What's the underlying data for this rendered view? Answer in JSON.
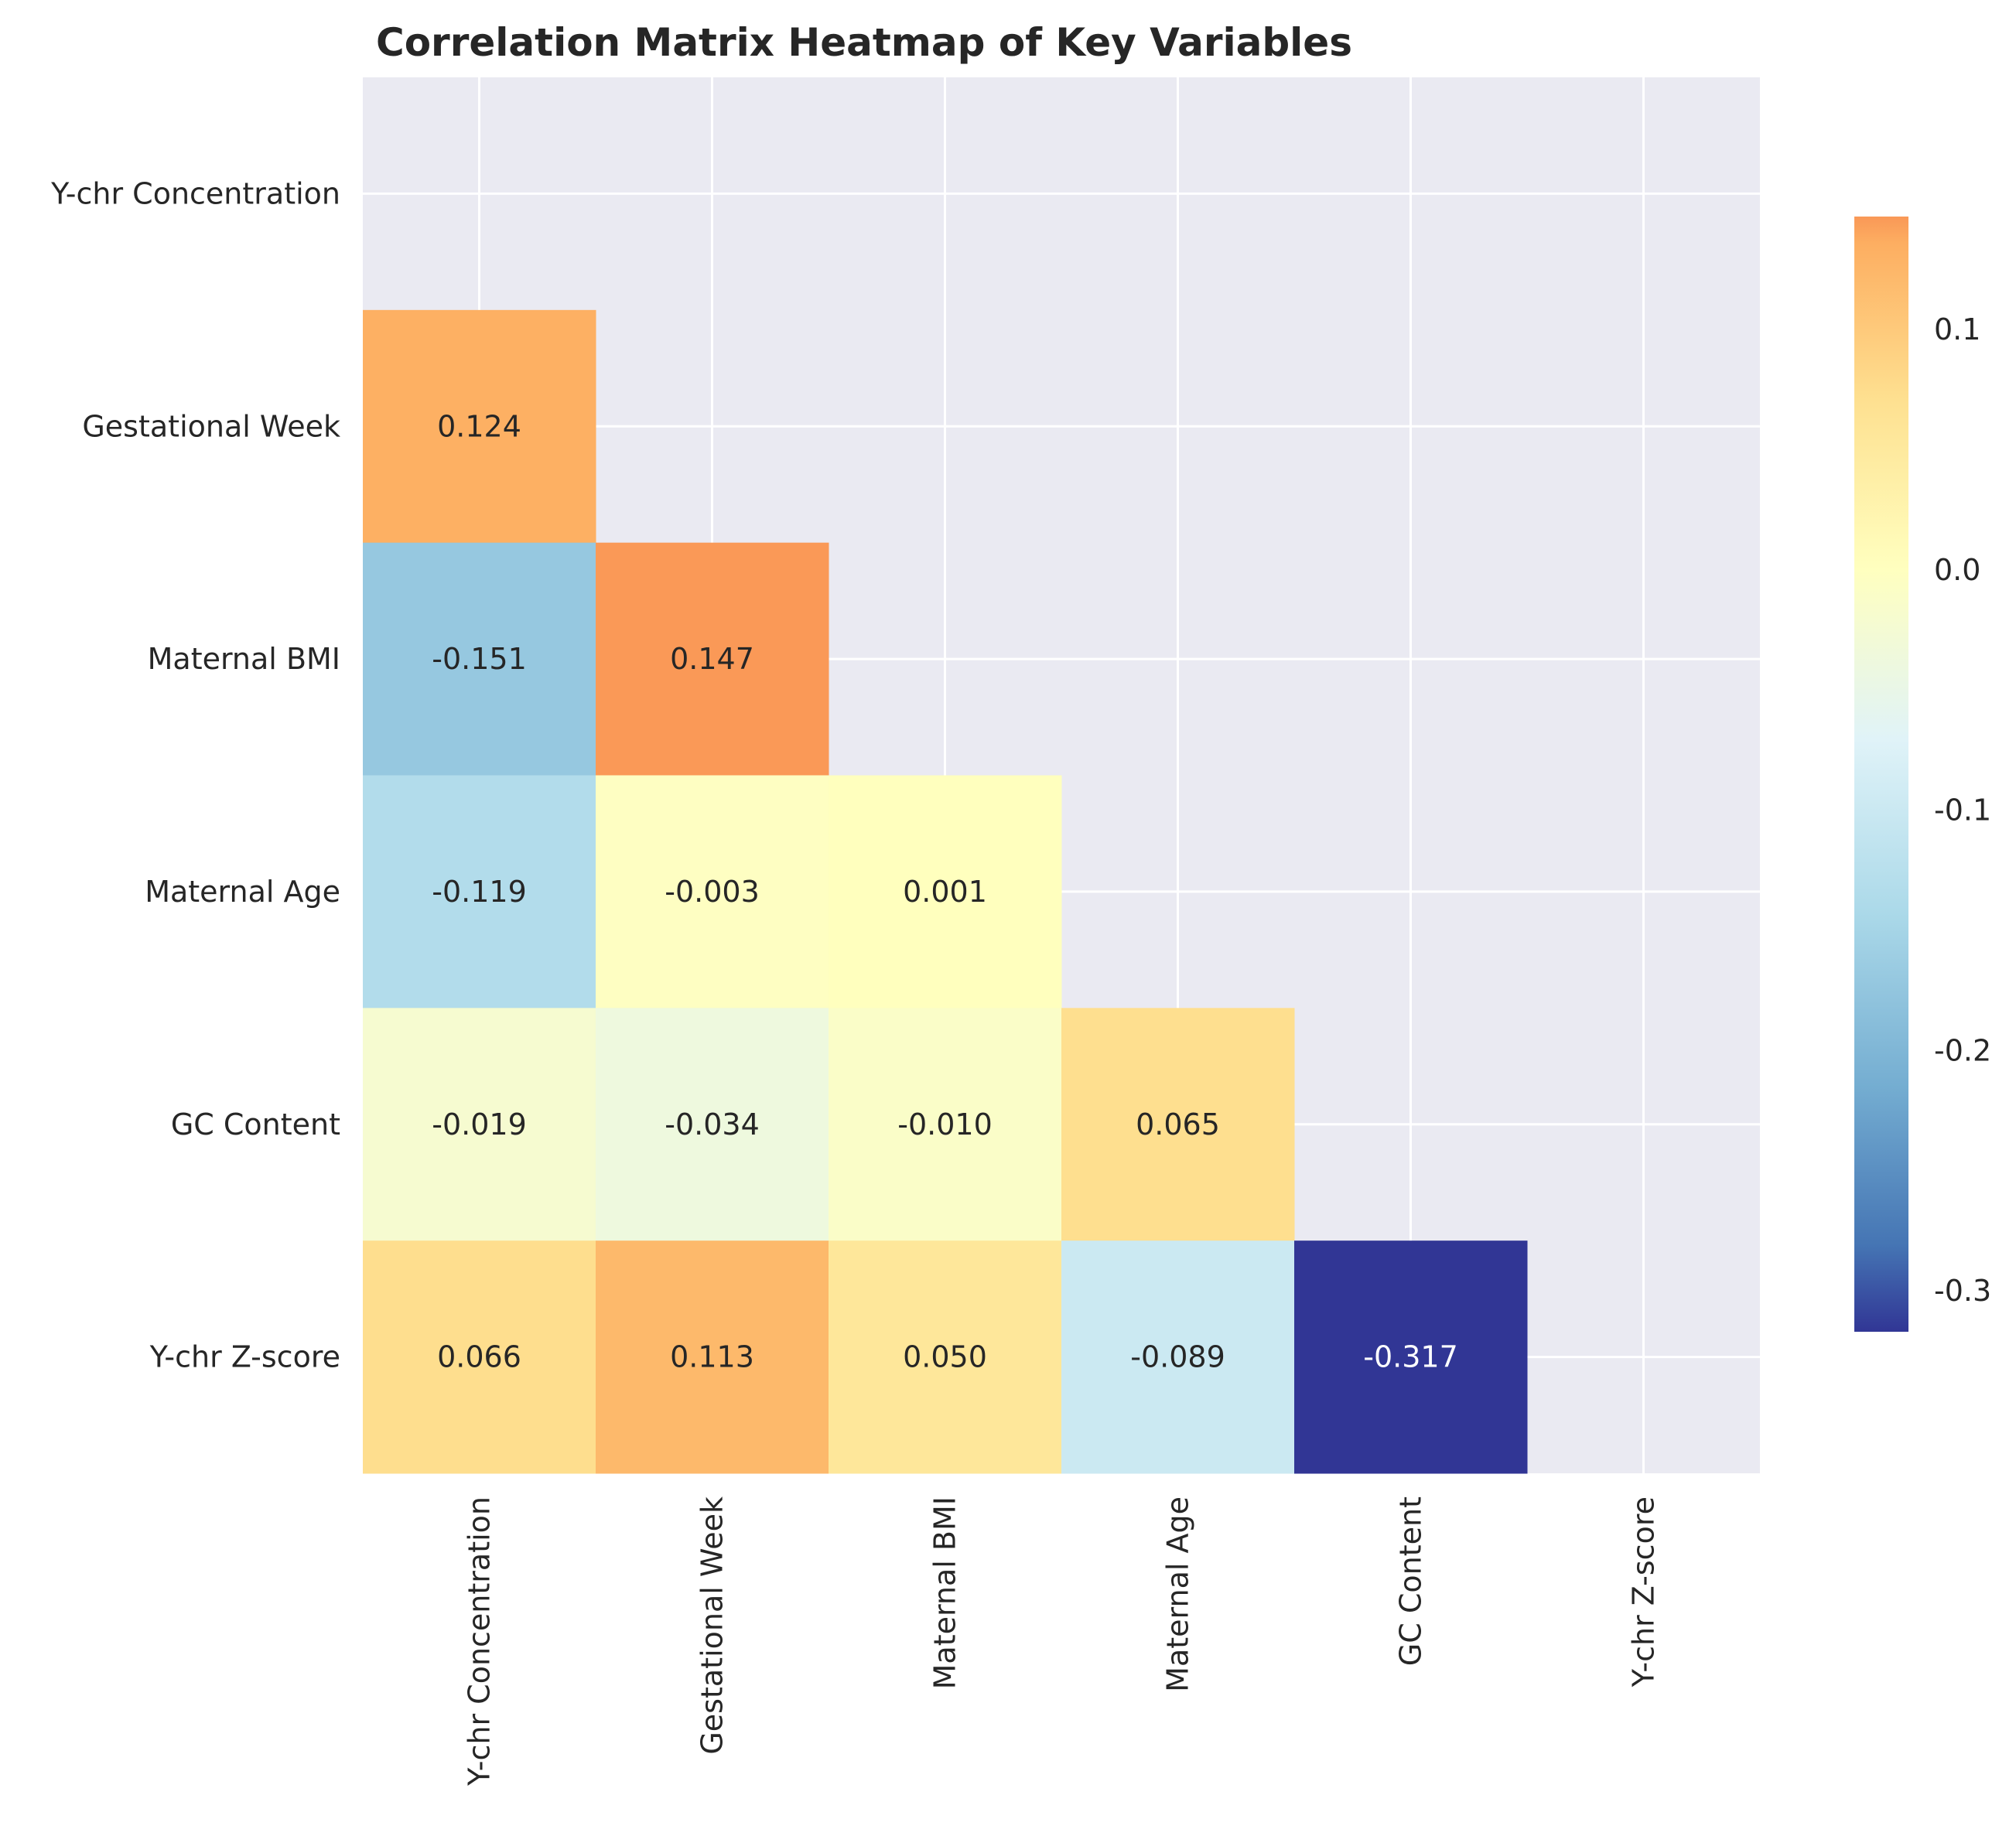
{
  "chart_data": {
    "type": "heatmap",
    "title": "Correlation Matrix Heatmap of Key Variables",
    "variables": [
      "Y-chr Concentration",
      "Gestational Week",
      "Maternal BMI",
      "Maternal Age",
      "GC Content",
      "Y-chr Z-score"
    ],
    "mask": "upper triangle including diagonal",
    "values": [
      [
        null,
        null,
        null,
        null,
        null,
        null
      ],
      [
        0.124,
        null,
        null,
        null,
        null,
        null
      ],
      [
        -0.151,
        0.147,
        null,
        null,
        null,
        null
      ],
      [
        -0.119,
        -0.003,
        0.001,
        null,
        null,
        null
      ],
      [
        -0.019,
        -0.034,
        -0.01,
        0.065,
        null,
        null
      ],
      [
        0.066,
        0.113,
        0.05,
        -0.089,
        -0.317,
        null
      ]
    ],
    "value_labels": [
      [
        null,
        null,
        null,
        null,
        null,
        null
      ],
      [
        "0.124",
        null,
        null,
        null,
        null,
        null
      ],
      [
        "-0.151",
        "0.147",
        null,
        null,
        null,
        null
      ],
      [
        "-0.119",
        "-0.003",
        "0.001",
        null,
        null,
        null
      ],
      [
        "-0.019",
        "-0.034",
        "-0.010",
        "0.065",
        null,
        null
      ],
      [
        "0.066",
        "0.113",
        "0.050",
        "-0.089",
        "-0.317",
        null
      ]
    ],
    "colormap": "RdYlBu_r",
    "vmin": -0.317,
    "vmax": 0.147,
    "colorbar_ticks": [
      0.1,
      0.0,
      -0.1,
      -0.2,
      -0.3
    ],
    "colorbar_tick_labels": [
      "0.1",
      "0.0",
      "-0.1",
      "-0.2",
      "-0.3"
    ],
    "grid": true,
    "colors": {
      "background": "#eaeaf2",
      "grid": "#ffffff",
      "text_dark": "#262626",
      "text_light": "#ffffff"
    }
  }
}
